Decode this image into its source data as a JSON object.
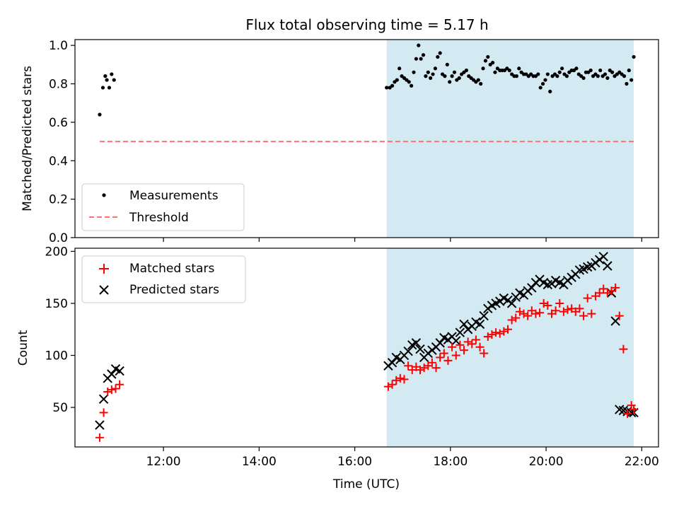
{
  "chart_data": [
    {
      "type": "scatter",
      "title": "Flux total observing time = 5.17 h",
      "ylabel": "Matched/Predicted stars",
      "xlabel": "",
      "xlim": [
        "10:09",
        "22:21"
      ],
      "ylim": [
        0,
        1.03
      ],
      "yticks": [
        0.0,
        0.2,
        0.4,
        0.6,
        0.8,
        1.0
      ],
      "ytick_labels": [
        "0.0",
        "0.2",
        "0.4",
        "0.6",
        "0.8",
        "1.0"
      ],
      "shaded_span": [
        "16:40",
        "21:50"
      ],
      "shade_color": "#d4eaf2",
      "legend_position": "lower-left",
      "series": [
        {
          "name": "Measurements",
          "style": "dot",
          "color": "#000000",
          "x": [
            "10:40",
            "10:44",
            "10:47",
            "10:49",
            "10:52",
            "10:55",
            "10:58",
            "16:40",
            "16:44",
            "16:47",
            "16:50",
            "16:53",
            "16:56",
            "16:59",
            "17:02",
            "17:05",
            "17:08",
            "17:11",
            "17:14",
            "17:17",
            "17:20",
            "17:23",
            "17:26",
            "17:29",
            "17:32",
            "17:35",
            "17:38",
            "17:41",
            "17:44",
            "17:47",
            "17:50",
            "17:53",
            "17:56",
            "17:59",
            "18:02",
            "18:05",
            "18:08",
            "18:11",
            "18:14",
            "18:17",
            "18:20",
            "18:23",
            "18:26",
            "18:29",
            "18:32",
            "18:35",
            "18:38",
            "18:41",
            "18:44",
            "18:47",
            "18:50",
            "18:53",
            "18:56",
            "18:59",
            "19:02",
            "19:05",
            "19:08",
            "19:11",
            "19:14",
            "19:17",
            "19:20",
            "19:23",
            "19:26",
            "19:29",
            "19:32",
            "19:35",
            "19:38",
            "19:41",
            "19:44",
            "19:47",
            "19:50",
            "19:53",
            "19:56",
            "19:59",
            "20:02",
            "20:05",
            "20:08",
            "20:11",
            "20:14",
            "20:17",
            "20:20",
            "20:23",
            "20:26",
            "20:29",
            "20:32",
            "20:35",
            "20:38",
            "20:41",
            "20:44",
            "20:47",
            "20:50",
            "20:53",
            "20:56",
            "20:59",
            "21:02",
            "21:05",
            "21:08",
            "21:11",
            "21:14",
            "21:17",
            "21:20",
            "21:23",
            "21:26",
            "21:29",
            "21:32",
            "21:35",
            "21:38",
            "21:41",
            "21:44",
            "21:47",
            "21:50"
          ],
          "values": [
            0.64,
            0.78,
            0.84,
            0.82,
            0.78,
            0.85,
            0.82,
            0.78,
            0.78,
            0.79,
            0.81,
            0.82,
            0.88,
            0.84,
            0.83,
            0.82,
            0.81,
            0.79,
            0.86,
            0.93,
            1.0,
            0.93,
            0.95,
            0.84,
            0.86,
            0.83,
            0.85,
            0.88,
            0.94,
            0.96,
            0.85,
            0.84,
            0.9,
            0.81,
            0.84,
            0.86,
            0.82,
            0.83,
            0.85,
            0.86,
            0.87,
            0.84,
            0.83,
            0.82,
            0.81,
            0.82,
            0.8,
            0.88,
            0.92,
            0.94,
            0.9,
            0.91,
            0.86,
            0.88,
            0.87,
            0.87,
            0.87,
            0.88,
            0.87,
            0.85,
            0.84,
            0.84,
            0.88,
            0.86,
            0.85,
            0.85,
            0.84,
            0.85,
            0.84,
            0.84,
            0.85,
            0.78,
            0.8,
            0.82,
            0.85,
            0.76,
            0.84,
            0.85,
            0.84,
            0.86,
            0.88,
            0.85,
            0.84,
            0.86,
            0.87,
            0.87,
            0.88,
            0.85,
            0.84,
            0.83,
            0.86,
            0.86,
            0.87,
            0.84,
            0.85,
            0.84,
            0.87,
            0.84,
            0.85,
            0.83,
            0.87,
            0.86,
            0.84,
            0.85,
            0.86,
            0.85,
            0.84,
            0.8,
            0.87,
            0.82,
            0.94
          ]
        },
        {
          "name": "Threshold",
          "style": "dashed-line",
          "color": "#ff7070",
          "x": [
            "10:40",
            "21:50"
          ],
          "values": [
            0.5,
            0.5
          ]
        }
      ]
    },
    {
      "type": "scatter",
      "title": "",
      "ylabel": "Count",
      "xlabel": "Time (UTC)",
      "xlim": [
        "10:09",
        "22:21"
      ],
      "ylim": [
        12,
        203
      ],
      "xticks": [
        "12:00",
        "14:00",
        "16:00",
        "18:00",
        "20:00",
        "22:00"
      ],
      "yticks": [
        50,
        100,
        150,
        200
      ],
      "ytick_labels": [
        "50",
        "100",
        "150",
        "200"
      ],
      "shaded_span": [
        "16:40",
        "21:50"
      ],
      "shade_color": "#d4eaf2",
      "legend_position": "upper-left",
      "series": [
        {
          "name": "Matched stars",
          "style": "plus",
          "color": "#ff0000",
          "x": [
            "10:40",
            "10:45",
            "10:50",
            "10:55",
            "11:00",
            "11:05",
            "16:42",
            "16:47",
            "16:52",
            "16:57",
            "17:02",
            "17:07",
            "17:12",
            "17:17",
            "17:22",
            "17:27",
            "17:32",
            "17:37",
            "17:42",
            "17:47",
            "17:52",
            "17:57",
            "18:02",
            "18:07",
            "18:12",
            "18:17",
            "18:22",
            "18:27",
            "18:32",
            "18:37",
            "18:42",
            "18:47",
            "18:52",
            "18:57",
            "19:02",
            "19:07",
            "19:12",
            "19:17",
            "19:22",
            "19:27",
            "19:32",
            "19:37",
            "19:42",
            "19:47",
            "19:52",
            "19:57",
            "20:02",
            "20:07",
            "20:12",
            "20:17",
            "20:22",
            "20:27",
            "20:32",
            "20:37",
            "20:42",
            "20:47",
            "20:52",
            "20:57",
            "21:02",
            "21:07",
            "21:12",
            "21:17",
            "21:22",
            "21:27",
            "21:32",
            "21:37",
            "21:42",
            "21:47",
            "21:50"
          ],
          "values": [
            21,
            45,
            65,
            67,
            68,
            72,
            70,
            72,
            76,
            78,
            77,
            90,
            86,
            89,
            86,
            88,
            90,
            93,
            88,
            98,
            102,
            95,
            108,
            100,
            110,
            105,
            113,
            111,
            115,
            108,
            102,
            118,
            120,
            122,
            121,
            123,
            125,
            134,
            136,
            142,
            140,
            138,
            143,
            140,
            141,
            150,
            148,
            140,
            143,
            150,
            142,
            144,
            145,
            142,
            145,
            138,
            155,
            140,
            157,
            160,
            164,
            160,
            162,
            165,
            138,
            106,
            44,
            52,
            48
          ]
        },
        {
          "name": "Predicted stars",
          "style": "x",
          "color": "#000000",
          "x": [
            "10:40",
            "10:45",
            "10:50",
            "10:55",
            "11:00",
            "11:05",
            "16:42",
            "16:47",
            "16:52",
            "16:57",
            "17:02",
            "17:07",
            "17:12",
            "17:17",
            "17:22",
            "17:27",
            "17:32",
            "17:37",
            "17:42",
            "17:47",
            "17:52",
            "17:57",
            "18:02",
            "18:07",
            "18:12",
            "18:17",
            "18:22",
            "18:27",
            "18:32",
            "18:37",
            "18:42",
            "18:47",
            "18:52",
            "18:57",
            "19:02",
            "19:07",
            "19:12",
            "19:17",
            "19:22",
            "19:27",
            "19:32",
            "19:37",
            "19:42",
            "19:47",
            "19:52",
            "19:57",
            "20:02",
            "20:07",
            "20:12",
            "20:17",
            "20:22",
            "20:27",
            "20:32",
            "20:37",
            "20:42",
            "20:47",
            "20:52",
            "20:57",
            "21:02",
            "21:07",
            "21:12",
            "21:17",
            "21:22",
            "21:27",
            "21:32",
            "21:37",
            "21:42",
            "21:47",
            "21:50"
          ],
          "values": [
            33,
            58,
            78,
            82,
            87,
            85,
            90,
            93,
            98,
            96,
            100,
            104,
            110,
            112,
            106,
            98,
            102,
            105,
            108,
            112,
            117,
            115,
            118,
            114,
            122,
            130,
            125,
            128,
            132,
            130,
            138,
            145,
            148,
            150,
            152,
            155,
            153,
            150,
            156,
            160,
            158,
            162,
            165,
            170,
            173,
            170,
            168,
            169,
            172,
            170,
            168,
            172,
            175,
            178,
            182,
            183,
            185,
            186,
            189,
            192,
            195,
            186,
            160,
            133,
            48,
            47,
            46,
            45,
            45
          ]
        }
      ]
    }
  ]
}
